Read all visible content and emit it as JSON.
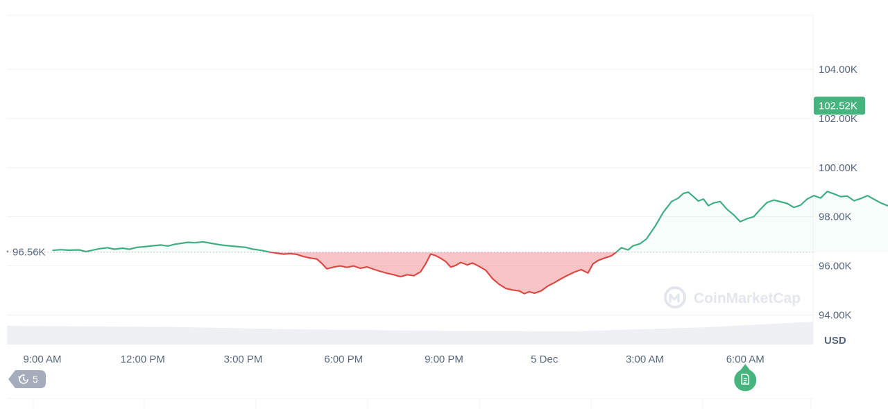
{
  "chart_data": {
    "type": "area",
    "currency": "USD",
    "y_ticks": [
      94000,
      96000,
      98000,
      100000,
      102000,
      104000
    ],
    "y_tick_labels": [
      "94.00K",
      "96.00K",
      "98.00K",
      "100.00K",
      "102.00K",
      "104.00K"
    ],
    "x_tick_labels": [
      "9:00 AM",
      "12:00 PM",
      "3:00 PM",
      "6:00 PM",
      "9:00 PM",
      "5 Dec",
      "3:00 AM",
      "6:00 AM"
    ],
    "x_unit": "hours since first tick (9:00 AM, 4 Dec)",
    "ylim": [
      92800,
      106200
    ],
    "reference_price": 96560,
    "reference_label": "96.56K",
    "current_price": 102520,
    "current_label": "102.52K",
    "grid": "horizontal",
    "series": [
      {
        "values": [
          [
            0.3,
            96630
          ],
          [
            0.55,
            96660
          ],
          [
            0.8,
            96640
          ],
          [
            1.1,
            96650
          ],
          [
            1.3,
            96580
          ],
          [
            1.5,
            96640
          ],
          [
            1.7,
            96700
          ],
          [
            1.95,
            96740
          ],
          [
            2.15,
            96680
          ],
          [
            2.4,
            96720
          ],
          [
            2.6,
            96680
          ],
          [
            2.85,
            96760
          ],
          [
            3.05,
            96780
          ],
          [
            3.3,
            96820
          ],
          [
            3.55,
            96850
          ],
          [
            3.75,
            96810
          ],
          [
            3.95,
            96880
          ],
          [
            4.15,
            96920
          ],
          [
            4.35,
            96960
          ],
          [
            4.55,
            96940
          ],
          [
            4.8,
            96980
          ],
          [
            5.05,
            96920
          ],
          [
            5.3,
            96860
          ],
          [
            5.55,
            96820
          ],
          [
            5.8,
            96790
          ],
          [
            6.05,
            96760
          ],
          [
            6.3,
            96680
          ],
          [
            6.55,
            96630
          ],
          [
            6.8,
            96560
          ],
          [
            7.0,
            96520
          ],
          [
            7.2,
            96480
          ],
          [
            7.4,
            96500
          ],
          [
            7.6,
            96470
          ],
          [
            7.8,
            96380
          ],
          [
            8.0,
            96320
          ],
          [
            8.2,
            96280
          ],
          [
            8.35,
            96100
          ],
          [
            8.5,
            95880
          ],
          [
            8.7,
            95950
          ],
          [
            8.9,
            96000
          ],
          [
            9.1,
            95940
          ],
          [
            9.3,
            96000
          ],
          [
            9.5,
            95900
          ],
          [
            9.7,
            95960
          ],
          [
            9.9,
            95860
          ],
          [
            10.1,
            95780
          ],
          [
            10.3,
            95700
          ],
          [
            10.5,
            95640
          ],
          [
            10.7,
            95560
          ],
          [
            10.9,
            95640
          ],
          [
            11.1,
            95600
          ],
          [
            11.3,
            95760
          ],
          [
            11.45,
            96080
          ],
          [
            11.6,
            96480
          ],
          [
            11.75,
            96420
          ],
          [
            11.9,
            96310
          ],
          [
            12.05,
            96180
          ],
          [
            12.2,
            95950
          ],
          [
            12.35,
            96020
          ],
          [
            12.5,
            96140
          ],
          [
            12.7,
            96040
          ],
          [
            12.85,
            96120
          ],
          [
            13.05,
            95980
          ],
          [
            13.25,
            95820
          ],
          [
            13.45,
            95480
          ],
          [
            13.65,
            95250
          ],
          [
            13.85,
            95080
          ],
          [
            14.05,
            95020
          ],
          [
            14.25,
            94980
          ],
          [
            14.4,
            94870
          ],
          [
            14.55,
            94950
          ],
          [
            14.7,
            94890
          ],
          [
            14.9,
            94980
          ],
          [
            15.1,
            95180
          ],
          [
            15.3,
            95320
          ],
          [
            15.5,
            95480
          ],
          [
            15.7,
            95620
          ],
          [
            15.9,
            95750
          ],
          [
            16.1,
            95850
          ],
          [
            16.3,
            95710
          ],
          [
            16.45,
            96080
          ],
          [
            16.6,
            96220
          ],
          [
            16.8,
            96320
          ],
          [
            17.0,
            96410
          ],
          [
            17.15,
            96560
          ],
          [
            17.3,
            96740
          ],
          [
            17.5,
            96650
          ],
          [
            17.65,
            96820
          ],
          [
            17.85,
            96900
          ],
          [
            18.05,
            97100
          ],
          [
            18.3,
            97600
          ],
          [
            18.55,
            98180
          ],
          [
            18.8,
            98620
          ],
          [
            19.0,
            98760
          ],
          [
            19.15,
            98950
          ],
          [
            19.3,
            99000
          ],
          [
            19.45,
            98820
          ],
          [
            19.6,
            98640
          ],
          [
            19.75,
            98720
          ],
          [
            19.9,
            98450
          ],
          [
            20.05,
            98560
          ],
          [
            20.25,
            98620
          ],
          [
            20.45,
            98310
          ],
          [
            20.65,
            98080
          ],
          [
            20.85,
            97800
          ],
          [
            21.05,
            97920
          ],
          [
            21.25,
            98000
          ],
          [
            21.45,
            98300
          ],
          [
            21.65,
            98580
          ],
          [
            21.85,
            98680
          ],
          [
            22.05,
            98610
          ],
          [
            22.25,
            98540
          ],
          [
            22.45,
            98380
          ],
          [
            22.65,
            98470
          ],
          [
            22.85,
            98720
          ],
          [
            23.05,
            98860
          ],
          [
            23.25,
            98760
          ],
          [
            23.45,
            99030
          ],
          [
            23.65,
            98930
          ],
          [
            23.85,
            98820
          ],
          [
            24.05,
            98840
          ],
          [
            24.25,
            98650
          ],
          [
            24.45,
            98740
          ],
          [
            24.65,
            98860
          ],
          [
            24.85,
            98710
          ],
          [
            25.05,
            98560
          ],
          [
            25.25,
            98450
          ],
          [
            25.45,
            98520
          ],
          [
            25.65,
            98400
          ],
          [
            25.85,
            98120
          ],
          [
            26.05,
            98440
          ],
          [
            26.25,
            98460
          ],
          [
            26.45,
            98680
          ],
          [
            26.65,
            98560
          ],
          [
            26.85,
            98240
          ],
          [
            27.05,
            98310
          ],
          [
            27.25,
            98510
          ],
          [
            27.45,
            98600
          ],
          [
            27.6,
            98720
          ],
          [
            27.8,
            99400
          ],
          [
            28.0,
            100100
          ],
          [
            28.15,
            101300
          ],
          [
            28.3,
            101150
          ],
          [
            28.45,
            101400
          ],
          [
            28.6,
            102200
          ],
          [
            28.75,
            103200
          ],
          [
            28.9,
            103300
          ],
          [
            29.05,
            103050
          ],
          [
            29.2,
            103250
          ],
          [
            29.35,
            102920
          ],
          [
            29.5,
            103150
          ],
          [
            29.65,
            103420
          ],
          [
            29.8,
            103550
          ],
          [
            29.95,
            103250
          ],
          [
            30.1,
            103650
          ],
          [
            30.25,
            103420
          ],
          [
            30.4,
            103050
          ],
          [
            30.55,
            102700
          ],
          [
            30.7,
            102900
          ],
          [
            30.85,
            102750
          ],
          [
            31.0,
            102980
          ],
          [
            31.15,
            103280
          ],
          [
            31.3,
            103320
          ],
          [
            31.45,
            103230
          ],
          [
            31.6,
            103350
          ],
          [
            31.75,
            103420
          ],
          [
            31.9,
            103350
          ],
          [
            32.05,
            102350
          ],
          [
            32.2,
            102520
          ]
        ]
      }
    ],
    "volume_band": [
      [
        0.0,
        0.45
      ],
      [
        4.0,
        0.42
      ],
      [
        8.0,
        0.36
      ],
      [
        12.0,
        0.33
      ],
      [
        16.0,
        0.32
      ],
      [
        20.0,
        0.42
      ],
      [
        24.0,
        0.55
      ],
      [
        28.0,
        0.75
      ],
      [
        30.0,
        0.9
      ],
      [
        32.5,
        0.95
      ]
    ],
    "event_markers": [
      {
        "x": 21.0,
        "icon": "document-icon"
      },
      {
        "x": 26.0,
        "icon": "document-icon"
      }
    ]
  },
  "history_badge": {
    "icon": "history-icon",
    "count": "5"
  },
  "watermark": {
    "text": "CoinMarketCap",
    "icon": "coinmarketcap-logo"
  },
  "colors": {
    "up": "#16c784",
    "up_line": "#3fae83",
    "down": "#ea3943",
    "down_line": "#d94a45",
    "current_badge": "#47b47f",
    "grid": "#eff2f5",
    "marker": "#47b47f",
    "history_badge": "#a5adbd"
  }
}
